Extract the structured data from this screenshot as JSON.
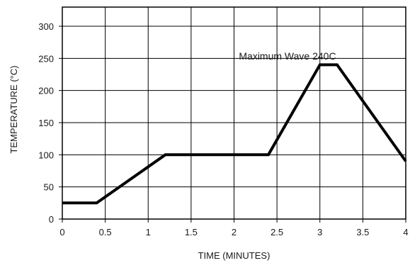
{
  "chart_data": {
    "type": "line",
    "xlabel": "TIME (MINUTES)",
    "ylabel": "TEMPERATURE (°C)",
    "xlim": [
      0,
      4
    ],
    "ylim": [
      0,
      300
    ],
    "x_ticks": [
      0,
      0.5,
      1,
      1.5,
      2,
      2.5,
      3,
      3.5,
      4
    ],
    "x_tick_labels": [
      "0",
      "0.5",
      "1",
      "1.5",
      "2",
      "2.5",
      "3",
      "3.5",
      "4"
    ],
    "y_ticks": [
      0,
      50,
      100,
      150,
      200,
      250,
      300
    ],
    "y_tick_labels": [
      "0",
      "50",
      "100",
      "150",
      "200",
      "250",
      "300"
    ],
    "grid": true,
    "series": [
      {
        "x": [
          0,
          0.4,
          1.2,
          2.4,
          3.0,
          3.2,
          4.0
        ],
        "values": [
          25,
          25,
          100,
          100,
          240,
          240,
          90
        ]
      }
    ],
    "annotations": [
      {
        "text": "Maximum Wave 240C",
        "x": 3.03,
        "y": 248
      }
    ]
  }
}
